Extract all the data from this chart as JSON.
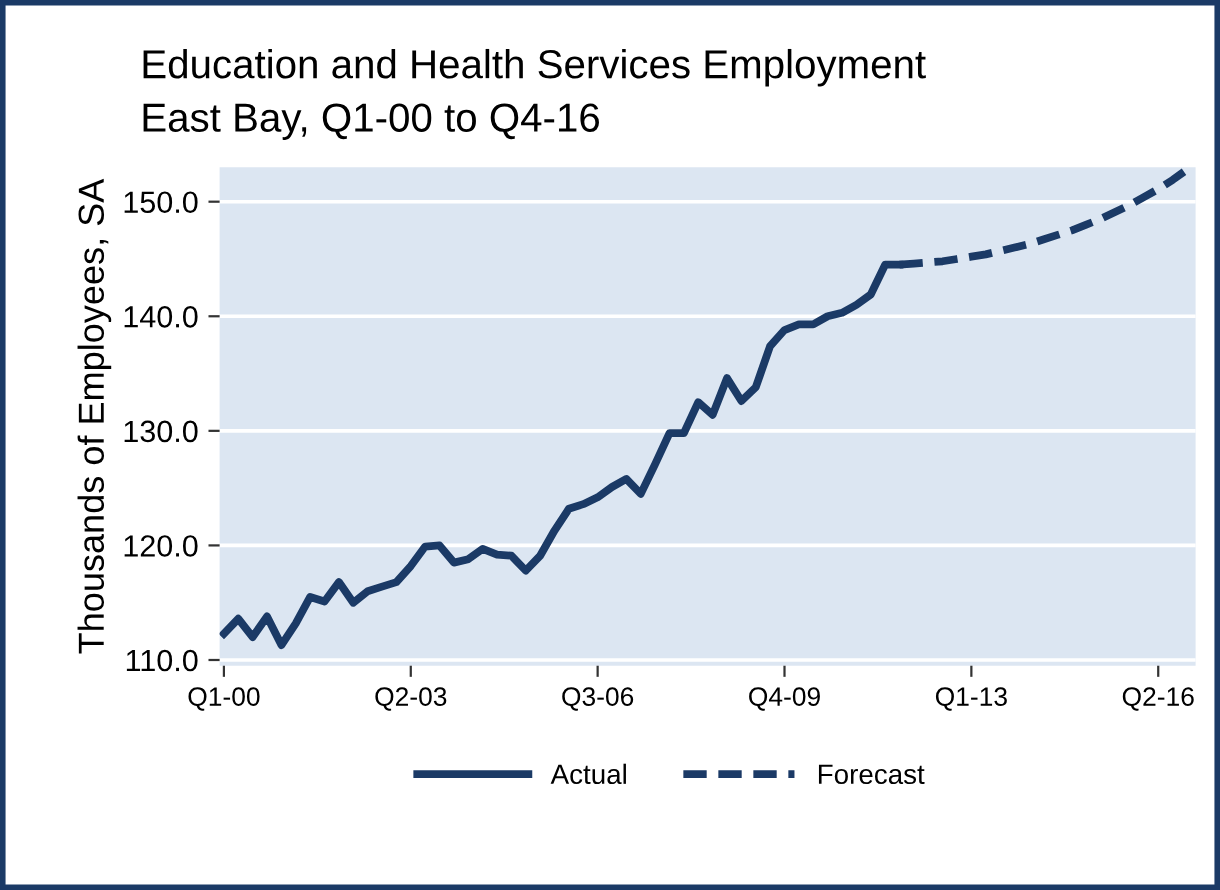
{
  "chart_data": {
    "type": "line",
    "title": "Education and Health Services Employment",
    "subtitle": "East Bay, Q1-00 to Q4-16",
    "ylabel": "Thousands of Employees, SA",
    "categories": [
      "Q1-00",
      null,
      null,
      null,
      null,
      null,
      null,
      null,
      null,
      null,
      null,
      null,
      null,
      "Q2-03",
      null,
      null,
      null,
      null,
      null,
      null,
      null,
      null,
      null,
      null,
      null,
      null,
      "Q3-06",
      null,
      null,
      null,
      null,
      null,
      null,
      null,
      null,
      null,
      null,
      null,
      null,
      "Q4-09",
      null,
      null,
      null,
      null,
      null,
      null,
      null,
      null,
      null,
      null,
      null,
      null,
      "Q1-13",
      null,
      null,
      null,
      null,
      null,
      null,
      null,
      null,
      null,
      null,
      null,
      null,
      "Q2-16",
      null,
      null
    ],
    "series": [
      {
        "name": "Actual",
        "color": "#1b3a66",
        "line_style": "solid",
        "values": [
          112.3,
          113.6,
          112.0,
          113.8,
          111.3,
          113.2,
          115.5,
          115.1,
          116.8,
          115.0,
          116.0,
          116.4,
          116.8,
          118.2,
          119.9,
          120.0,
          118.5,
          118.8,
          119.7,
          119.2,
          119.1,
          117.8,
          119.1,
          121.3,
          123.2,
          123.6,
          124.2,
          125.1,
          125.8,
          124.5,
          127.1,
          129.8,
          129.8,
          132.5,
          131.4,
          134.6,
          132.6,
          133.8,
          137.4,
          138.8,
          139.3,
          139.3,
          140.0,
          140.3,
          141.0,
          141.9,
          144.5,
          144.5,
          null,
          null,
          null,
          null,
          null,
          null,
          null,
          null,
          null,
          null,
          null,
          null,
          null,
          null,
          null,
          null,
          null,
          null,
          null,
          null
        ]
      },
      {
        "name": "Forecast",
        "color": "#1b3a66",
        "line_style": "dashed",
        "values": [
          null,
          null,
          null,
          null,
          null,
          null,
          null,
          null,
          null,
          null,
          null,
          null,
          null,
          null,
          null,
          null,
          null,
          null,
          null,
          null,
          null,
          null,
          null,
          null,
          null,
          null,
          null,
          null,
          null,
          null,
          null,
          null,
          null,
          null,
          null,
          null,
          null,
          null,
          null,
          null,
          null,
          null,
          null,
          null,
          null,
          null,
          null,
          144.5,
          144.6,
          144.7,
          144.8,
          145.0,
          145.2,
          145.4,
          145.7,
          146.0,
          146.3,
          146.7,
          147.1,
          147.5,
          148.0,
          148.5,
          149.1,
          149.7,
          150.4,
          151.1,
          151.9,
          152.8
        ]
      }
    ],
    "ylim": [
      109.5,
      153.0
    ],
    "yticks": [
      {
        "value": 110,
        "label": "110.0"
      },
      {
        "value": 120,
        "label": "120.0"
      },
      {
        "value": 130,
        "label": "130.0"
      },
      {
        "value": 140,
        "label": "140.0"
      },
      {
        "value": 150,
        "label": "150.0"
      }
    ],
    "grid": "y",
    "legend": "bottom",
    "marker": "none"
  }
}
